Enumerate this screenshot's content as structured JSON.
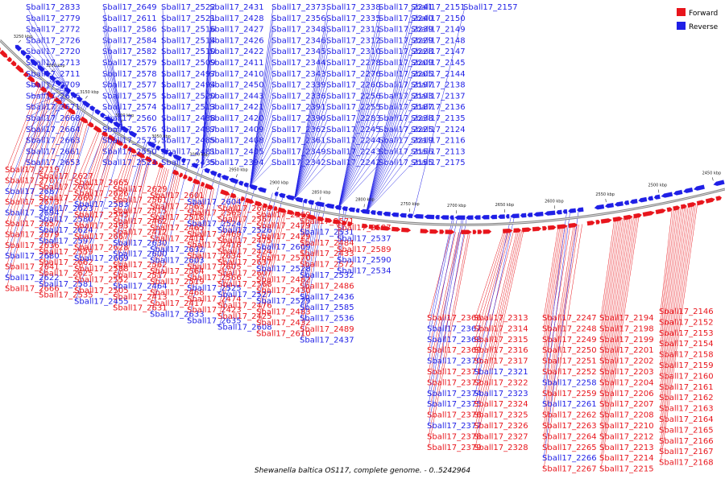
{
  "caption": "Shewanella baltica OS117, complete genome. - 0..5242964",
  "colors": {
    "forward": "#e8151c",
    "reverse": "#1f1fe6",
    "backbone": "#888888",
    "text": "#000000"
  },
  "legend": [
    {
      "key": "forward",
      "label": "Forward"
    },
    {
      "key": "reverse",
      "label": "Reverse"
    }
  ],
  "ticks": [
    "3250 kbp",
    "3200 kbp",
    "3150 kbp",
    "3100 kbp",
    "3050 kbp",
    "3000 kbp",
    "2950 kbp",
    "2900 kbp",
    "2850 kbp",
    "2800 kbp",
    "2750 kbp",
    "2700 kbp",
    "2650 kbp",
    "2600 kbp",
    "2550 kbp",
    "2500 kbp",
    "2450 kbp"
  ],
  "top_reverse_labels": [
    "Sball17_2833",
    "Sball17_2779",
    "Sball17_2772",
    "Sball17_2726",
    "Sball17_2720",
    "Sball17_2713",
    "Sball17_2711",
    "Sball17_2709",
    "Sball17_2676",
    "Sball17_2671",
    "Sball17_2668",
    "Sball17_2664",
    "Sball17_2663",
    "Sball17_2661",
    "Sball17_2653",
    "Sball17_2649",
    "Sball17_2611",
    "Sball17_2586",
    "Sball17_2584",
    "Sball17_2582",
    "Sball17_2579",
    "Sball17_2578",
    "Sball17_2577",
    "Sball17_2575",
    "Sball17_2574",
    "Sball17_2560",
    "Sball17_2576",
    "Sball17_2573",
    "Sball17_2550",
    "Sball17_2523",
    "Sball17_2522",
    "Sball17_2521",
    "Sball17_2516",
    "Sball17_2514",
    "Sball17_2510",
    "Sball17_2509",
    "Sball17_2497",
    "Sball17_2494",
    "Sball17_2520",
    "Sball17_2513",
    "Sball17_2488",
    "Sball17_2487",
    "Sball17_2485",
    "Sball17_2481",
    "Sball17_2435",
    "Sball17_2431",
    "Sball17_2428",
    "Sball17_2427",
    "Sball17_2426",
    "Sball17_2422",
    "Sball17_2411",
    "Sball17_2410",
    "Sball17_2450",
    "Sball17_2443",
    "Sball17_2421",
    "Sball17_2420",
    "Sball17_2409",
    "Sball17_2408",
    "Sball17_2405",
    "Sball17_2394",
    "Sball17_2373",
    "Sball17_2356",
    "Sball17_2348",
    "Sball17_2346",
    "Sball17_2345",
    "Sball17_2344",
    "Sball17_2343",
    "Sball17_2339",
    "Sball17_2336",
    "Sball17_2391",
    "Sball17_2390",
    "Sball17_2362",
    "Sball17_2361",
    "Sball17_2349",
    "Sball17_2342",
    "Sball17_2338",
    "Sball17_2335",
    "Sball17_2311",
    "Sball17_2312",
    "Sball17_2310",
    "Sball17_2278",
    "Sball17_2276",
    "Sball17_2260",
    "Sball17_2256",
    "Sball17_2255",
    "Sball17_2283",
    "Sball17_2245",
    "Sball17_2244",
    "Sball17_2243",
    "Sball17_2242",
    "Sball17_2241",
    "Sball17_2240",
    "Sball17_2239",
    "Sball17_2229",
    "Sball17_2228",
    "Sball17_2209",
    "Sball17_2205",
    "Sball17_2197",
    "Sball17_2193",
    "Sball17_2187",
    "Sball17_2238",
    "Sball17_2225",
    "Sball17_2219",
    "Sball17_2156",
    "Sball17_2155",
    "Sball17_2151",
    "Sball17_2150",
    "Sball17_2149",
    "Sball17_2148",
    "Sball17_2147",
    "Sball17_2145",
    "Sball17_2144",
    "Sball17_2138",
    "Sball17_2137",
    "Sball17_2136",
    "Sball17_2135",
    "Sball17_2124",
    "Sball17_2116",
    "Sball17_2113",
    "Sball17_2175",
    "Sball17_2157"
  ],
  "left_mixed_labels": [
    {
      "t": "Sball17_2719",
      "s": "f"
    },
    {
      "t": "Sball17_2701",
      "s": "f"
    },
    {
      "t": "Sball17_2687",
      "s": "r"
    },
    {
      "t": "Sball17_2673",
      "s": "f"
    },
    {
      "t": "Sball17_2694",
      "s": "r"
    },
    {
      "t": "Sball17_2657",
      "s": "f"
    },
    {
      "t": "Sball17_2679",
      "s": "f"
    },
    {
      "t": "Sball17_2636",
      "s": "f"
    },
    {
      "t": "Sball17_2680",
      "s": "r"
    },
    {
      "t": "Sball17_2641",
      "s": "f"
    },
    {
      "t": "Sball17_2622",
      "s": "r"
    },
    {
      "t": "Sball17_2666",
      "s": "f"
    },
    {
      "t": "Sball17_2627",
      "s": "f"
    },
    {
      "t": "Sball17_2602",
      "s": "f"
    },
    {
      "t": "Sball17_2660",
      "s": "f"
    },
    {
      "t": "Sball17_2623",
      "s": "r"
    },
    {
      "t": "Sball17_2580",
      "s": "r"
    },
    {
      "t": "Sball17_2624",
      "s": "r"
    },
    {
      "t": "Sball17_2597",
      "s": "r"
    },
    {
      "t": "Sball17_2559",
      "s": "f"
    },
    {
      "t": "Sball17_2662",
      "s": "f"
    },
    {
      "t": "Sball17_2625",
      "s": "f"
    },
    {
      "t": "Sball17_2581",
      "s": "r"
    },
    {
      "t": "Sball17_2535",
      "s": "f"
    },
    {
      "t": "Sball17_2665",
      "s": "f"
    },
    {
      "t": "Sball17_2626",
      "s": "f"
    },
    {
      "t": "Sball17_2583",
      "s": "r"
    },
    {
      "t": "Sball17_2545",
      "s": "f"
    },
    {
      "t": "Sball17_2493",
      "s": "f"
    },
    {
      "t": "Sball17_2667",
      "s": "f"
    },
    {
      "t": "Sball17_2628",
      "s": "f"
    },
    {
      "t": "Sball17_2669",
      "s": "r"
    },
    {
      "t": "Sball17_2588",
      "s": "f"
    },
    {
      "t": "Sball17_2552",
      "s": "f"
    },
    {
      "t": "Sball17_2505",
      "s": "f"
    },
    {
      "t": "Sball17_2455",
      "s": "r"
    },
    {
      "t": "Sball17_2629",
      "s": "f"
    },
    {
      "t": "Sball17_2561",
      "s": "f"
    },
    {
      "t": "Sball17_2515",
      "s": "f"
    },
    {
      "t": "Sball17_2462",
      "s": "f"
    },
    {
      "t": "Sball17_2412",
      "s": "f"
    },
    {
      "t": "Sball17_2630",
      "s": "r"
    },
    {
      "t": "Sball17_2600",
      "s": "r"
    },
    {
      "t": "Sball17_2562",
      "s": "f"
    },
    {
      "t": "Sball17_2517",
      "s": "f"
    },
    {
      "t": "Sball17_2464",
      "s": "r"
    },
    {
      "t": "Sball17_2413",
      "s": "f"
    },
    {
      "t": "Sball17_2631",
      "s": "f"
    },
    {
      "t": "Sball17_2601",
      "s": "f"
    },
    {
      "t": "Sball17_2563",
      "s": "f"
    },
    {
      "t": "Sball17_2518",
      "s": "f"
    },
    {
      "t": "Sball17_2465",
      "s": "f"
    },
    {
      "t": "Sball17_2414",
      "s": "f"
    },
    {
      "t": "Sball17_2632",
      "s": "r"
    },
    {
      "t": "Sball17_2603",
      "s": "r"
    },
    {
      "t": "Sball17_2564",
      "s": "f"
    },
    {
      "t": "Sball17_2519",
      "s": "f"
    },
    {
      "t": "Sball17_2468",
      "s": "f"
    },
    {
      "t": "Sball17_2417",
      "s": "f"
    },
    {
      "t": "Sball17_2633",
      "s": "r"
    },
    {
      "t": "Sball17_2604",
      "s": "r"
    },
    {
      "t": "Sball17_2565",
      "s": "f"
    },
    {
      "t": "Sball17_2524",
      "s": "r"
    },
    {
      "t": "Sball17_2469",
      "s": "f"
    },
    {
      "t": "Sball17_2418",
      "s": "f"
    },
    {
      "t": "Sball17_2634",
      "s": "f"
    },
    {
      "t": "Sball17_2605",
      "s": "f"
    },
    {
      "t": "Sball17_2566",
      "s": "f"
    },
    {
      "t": "Sball17_2525",
      "s": "r"
    },
    {
      "t": "Sball17_2474",
      "s": "f"
    },
    {
      "t": "Sball17_2423",
      "s": "f"
    },
    {
      "t": "Sball17_2635",
      "s": "r"
    },
    {
      "t": "Sball17_2606",
      "s": "f"
    },
    {
      "t": "Sball17_2567",
      "s": "f"
    },
    {
      "t": "Sball17_2526",
      "s": "r"
    },
    {
      "t": "Sball17_2475",
      "s": "f"
    },
    {
      "t": "Sball17_2424",
      "s": "f"
    },
    {
      "t": "Sball17_2637",
      "s": "f"
    },
    {
      "t": "Sball17_2607",
      "s": "f"
    },
    {
      "t": "Sball17_2568",
      "s": "f"
    },
    {
      "t": "Sball17_2527",
      "s": "r"
    },
    {
      "t": "Sball17_2476",
      "s": "f"
    },
    {
      "t": "Sball17_2425",
      "s": "f"
    },
    {
      "t": "Sball17_2608",
      "s": "r"
    },
    {
      "t": "Sball17_2569",
      "s": "f"
    },
    {
      "t": "Sball17_2479",
      "s": "f"
    },
    {
      "t": "Sball17_2429",
      "s": "f"
    },
    {
      "t": "Sball17_2609",
      "s": "r"
    },
    {
      "t": "Sball17_2570",
      "s": "f"
    },
    {
      "t": "Sball17_2528",
      "s": "r"
    },
    {
      "t": "Sball17_2482",
      "s": "f"
    },
    {
      "t": "Sball17_2430",
      "s": "f"
    },
    {
      "t": "Sball17_2529",
      "s": "r"
    },
    {
      "t": "Sball17_2483",
      "s": "f"
    },
    {
      "t": "Sball17_2432",
      "s": "f"
    },
    {
      "t": "Sball17_2610",
      "s": "f"
    },
    {
      "t": "Sball17_2571",
      "s": "f"
    },
    {
      "t": "Sball17_2531",
      "s": "r"
    },
    {
      "t": "Sball17_2484",
      "s": "f"
    },
    {
      "t": "Sball17_2433",
      "s": "f"
    },
    {
      "t": "Sball17_2572",
      "s": "f"
    },
    {
      "t": "Sball17_2532",
      "s": "r"
    },
    {
      "t": "Sball17_2486",
      "s": "f"
    },
    {
      "t": "Sball17_2436",
      "s": "r"
    },
    {
      "t": "Sball17_2585",
      "s": "r"
    },
    {
      "t": "Sball17_2536",
      "s": "r"
    },
    {
      "t": "Sball17_2489",
      "s": "f"
    },
    {
      "t": "Sball17_2437",
      "s": "r"
    },
    {
      "t": "Sball17_2587",
      "s": "f"
    },
    {
      "t": "Sball17_2537",
      "s": "r"
    },
    {
      "t": "Sball17_2589",
      "s": "f"
    },
    {
      "t": "Sball17_2590",
      "s": "r"
    },
    {
      "t": "Sball17_2534",
      "s": "r"
    }
  ],
  "bottom_mixed_labels": [
    {
      "t": "Sball17_2366",
      "s": "f"
    },
    {
      "t": "Sball17_2367",
      "s": "r"
    },
    {
      "t": "Sball17_2368",
      "s": "r"
    },
    {
      "t": "Sball17_2369",
      "s": "f"
    },
    {
      "t": "Sball17_2370",
      "s": "r"
    },
    {
      "t": "Sball17_2371",
      "s": "f"
    },
    {
      "t": "Sball17_2372",
      "s": "f"
    },
    {
      "t": "Sball17_2374",
      "s": "r"
    },
    {
      "t": "Sball17_2375",
      "s": "r"
    },
    {
      "t": "Sball17_2376",
      "s": "f"
    },
    {
      "t": "Sball17_2377",
      "s": "r"
    },
    {
      "t": "Sball17_2378",
      "s": "f"
    },
    {
      "t": "Sball17_2379",
      "s": "f"
    },
    {
      "t": "Sball17_2313",
      "s": "f"
    },
    {
      "t": "Sball17_2314",
      "s": "f"
    },
    {
      "t": "Sball17_2315",
      "s": "f"
    },
    {
      "t": "Sball17_2316",
      "s": "f"
    },
    {
      "t": "Sball17_2317",
      "s": "f"
    },
    {
      "t": "Sball17_2321",
      "s": "r"
    },
    {
      "t": "Sball17_2322",
      "s": "f"
    },
    {
      "t": "Sball17_2323",
      "s": "r"
    },
    {
      "t": "Sball17_2324",
      "s": "f"
    },
    {
      "t": "Sball17_2325",
      "s": "f"
    },
    {
      "t": "Sball17_2326",
      "s": "f"
    },
    {
      "t": "Sball17_2327",
      "s": "f"
    },
    {
      "t": "Sball17_2328",
      "s": "f"
    },
    {
      "t": "Sball17_2247",
      "s": "f"
    },
    {
      "t": "Sball17_2248",
      "s": "f"
    },
    {
      "t": "Sball17_2249",
      "s": "f"
    },
    {
      "t": "Sball17_2250",
      "s": "f"
    },
    {
      "t": "Sball17_2251",
      "s": "f"
    },
    {
      "t": "Sball17_2252",
      "s": "f"
    },
    {
      "t": "Sball17_2258",
      "s": "r"
    },
    {
      "t": "Sball17_2259",
      "s": "f"
    },
    {
      "t": "Sball17_2261",
      "s": "r"
    },
    {
      "t": "Sball17_2262",
      "s": "f"
    },
    {
      "t": "Sball17_2263",
      "s": "f"
    },
    {
      "t": "Sball17_2264",
      "s": "f"
    },
    {
      "t": "Sball17_2265",
      "s": "f"
    },
    {
      "t": "Sball17_2266",
      "s": "r"
    },
    {
      "t": "Sball17_2267",
      "s": "f"
    },
    {
      "t": "Sball17_2194",
      "s": "f"
    },
    {
      "t": "Sball17_2198",
      "s": "f"
    },
    {
      "t": "Sball17_2199",
      "s": "f"
    },
    {
      "t": "Sball17_2201",
      "s": "f"
    },
    {
      "t": "Sball17_2202",
      "s": "f"
    },
    {
      "t": "Sball17_2203",
      "s": "f"
    },
    {
      "t": "Sball17_2204",
      "s": "f"
    },
    {
      "t": "Sball17_2206",
      "s": "f"
    },
    {
      "t": "Sball17_2207",
      "s": "f"
    },
    {
      "t": "Sball17_2208",
      "s": "f"
    },
    {
      "t": "Sball17_2210",
      "s": "f"
    },
    {
      "t": "Sball17_2212",
      "s": "f"
    },
    {
      "t": "Sball17_2213",
      "s": "f"
    },
    {
      "t": "Sball17_2214",
      "s": "f"
    },
    {
      "t": "Sball17_2215",
      "s": "f"
    },
    {
      "t": "Sball17_2146",
      "s": "f"
    },
    {
      "t": "Sball17_2152",
      "s": "f"
    },
    {
      "t": "Sball17_2153",
      "s": "f"
    },
    {
      "t": "Sball17_2154",
      "s": "f"
    },
    {
      "t": "Sball17_2158",
      "s": "f"
    },
    {
      "t": "Sball17_2159",
      "s": "f"
    },
    {
      "t": "Sball17_2160",
      "s": "f"
    },
    {
      "t": "Sball17_2161",
      "s": "f"
    },
    {
      "t": "Sball17_2162",
      "s": "f"
    },
    {
      "t": "Sball17_2163",
      "s": "f"
    },
    {
      "t": "Sball17_2164",
      "s": "f"
    },
    {
      "t": "Sball17_2165",
      "s": "f"
    },
    {
      "t": "Sball17_2166",
      "s": "f"
    },
    {
      "t": "Sball17_2167",
      "s": "f"
    },
    {
      "t": "Sball17_2168",
      "s": "f"
    }
  ]
}
